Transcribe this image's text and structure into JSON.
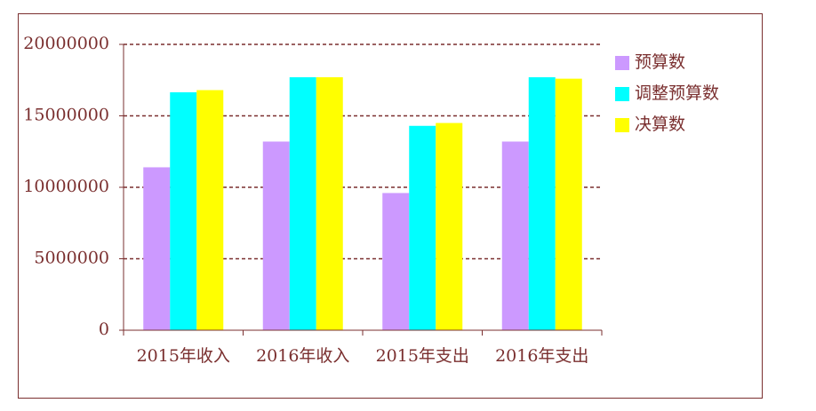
{
  "chart_data": {
    "type": "bar",
    "categories": [
      "2015年收入",
      "2016年收入",
      "2015年支出",
      "2016年支出"
    ],
    "series": [
      {
        "name": "预算数",
        "color": "#cc99ff",
        "values": [
          11400000,
          13200000,
          9600000,
          13200000
        ]
      },
      {
        "name": "调整预算数",
        "color": "#00ffff",
        "values": [
          16650000,
          17700000,
          14300000,
          17700000
        ]
      },
      {
        "name": "决算数",
        "color": "#ffff00",
        "values": [
          16800000,
          17700000,
          14500000,
          17600000
        ]
      }
    ],
    "ylim": [
      0,
      20000000
    ],
    "yticks": [
      0,
      5000000,
      10000000,
      15000000,
      20000000
    ],
    "grid": true,
    "legend": "right"
  }
}
